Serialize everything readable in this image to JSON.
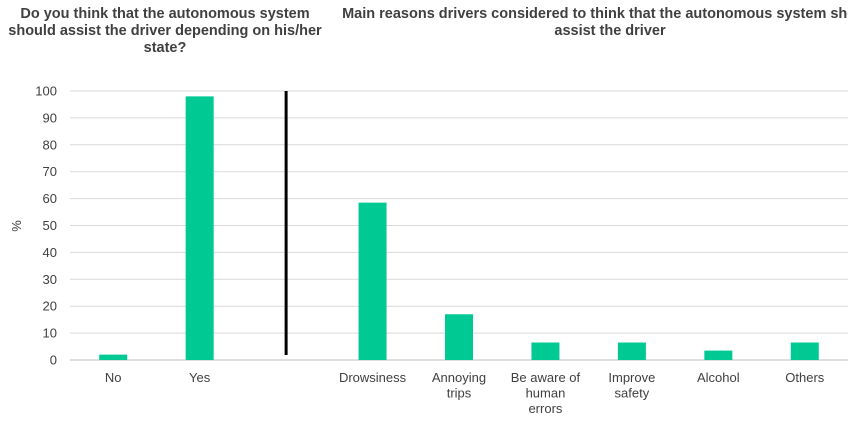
{
  "chart_data": {
    "type": "bar",
    "title_left": "Do you think that the autonomous system should assist the driver depending on his/her state?",
    "title_right": "Main reasons drivers considered to think that the autonomous system should assist the driver",
    "ylabel": "%",
    "ylim": [
      0,
      100
    ],
    "yticks": [
      "0",
      "10",
      "20",
      "30",
      "40",
      "50",
      "60",
      "70",
      "80",
      "90",
      "100"
    ],
    "grid": true,
    "bar_color": "#00C993",
    "divider_color": "#000000",
    "categories": [
      "No",
      "Yes",
      "",
      "Drowsiness",
      "Annoying trips",
      "Be aware of human errors",
      "Improve safety",
      "Alcohol",
      "Others"
    ],
    "category_lines": [
      [
        "No"
      ],
      [
        "Yes"
      ],
      [],
      [
        "Drowsiness"
      ],
      [
        "Annoying",
        "trips"
      ],
      [
        "Be aware of",
        "human",
        "errors"
      ],
      [
        "Improve",
        "safety"
      ],
      [
        "Alcohol"
      ],
      [
        "Others"
      ]
    ],
    "values": [
      2,
      98,
      null,
      58.5,
      17,
      6.5,
      6.5,
      3.5,
      6.5
    ]
  }
}
